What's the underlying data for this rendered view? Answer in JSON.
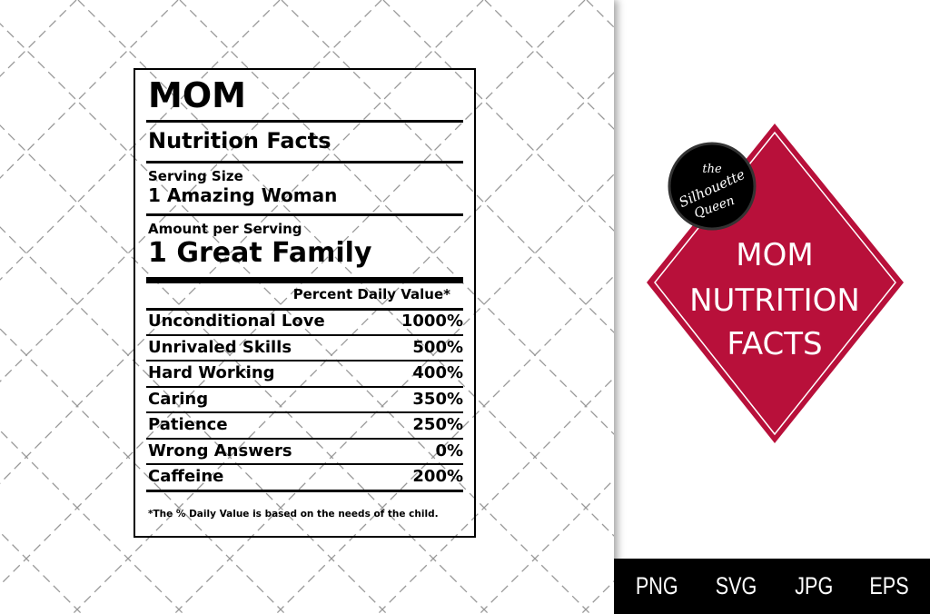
{
  "label": {
    "title": "MOM",
    "heading": "Nutrition Facts",
    "serving_size_label": "Serving Size",
    "serving_size_value": "1 Amazing Woman",
    "amount_label": "Amount per Serving",
    "amount_value": "1 Great Family",
    "pdv_header": "Percent Daily Value*",
    "rows": [
      {
        "name": "Unconditional Love",
        "value": "1000%"
      },
      {
        "name": "Unrivaled Skills",
        "value": "500%"
      },
      {
        "name": "Hard Working",
        "value": "400%"
      },
      {
        "name": "Caring",
        "value": "350%"
      },
      {
        "name": "Patience",
        "value": "250%"
      },
      {
        "name": "Wrong Answers",
        "value": "0%"
      },
      {
        "name": "Caffeine",
        "value": "200%"
      }
    ],
    "footnote": "*The % Daily Value is based on the needs of the child."
  },
  "badge": {
    "logo_text": "the Silhouette Queen",
    "lines": [
      "MOM",
      "NUTRITION",
      "FACTS"
    ],
    "color": "#b8103a"
  },
  "formats": [
    "PNG",
    "SVG",
    "JPG",
    "EPS"
  ]
}
